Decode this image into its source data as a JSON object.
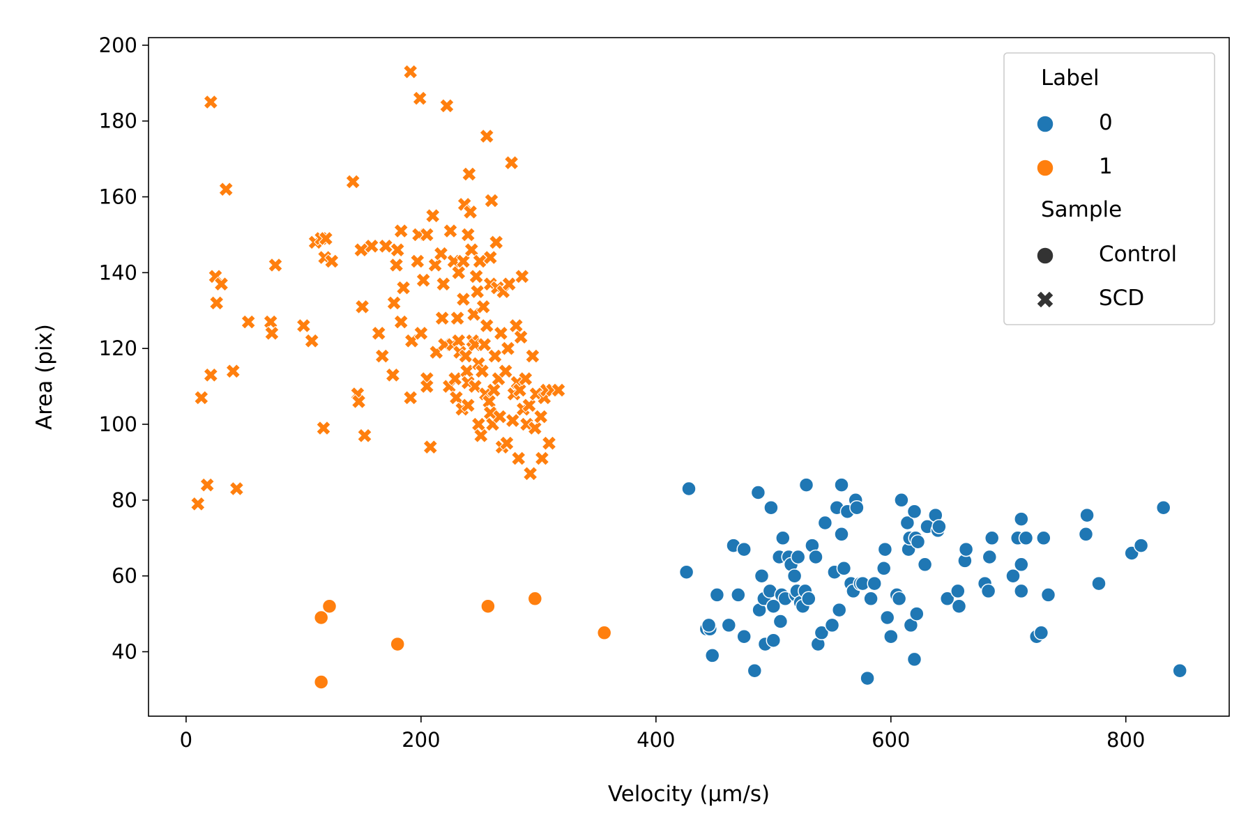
{
  "chart_data": {
    "type": "scatter",
    "xlabel": "Velocity (µm/s)",
    "ylabel": "Area (pix)",
    "xlim": [
      -32,
      888
    ],
    "ylim": [
      23,
      202
    ],
    "xticks": [
      0,
      200,
      400,
      600,
      800
    ],
    "yticks": [
      40,
      60,
      80,
      100,
      120,
      140,
      160,
      180,
      200
    ],
    "grid": false,
    "colors": {
      "label_0": "#1f77b4",
      "label_1": "#ff7f0e",
      "legend_neutral": "#333333"
    },
    "legend": {
      "placement": "top-right",
      "hue_title": "Label",
      "hue_entries": [
        {
          "text": "0",
          "color": "#1f77b4"
        },
        {
          "text": "1",
          "color": "#ff7f0e"
        }
      ],
      "style_title": "Sample",
      "style_entries": [
        {
          "text": "Control",
          "marker": "circle"
        },
        {
          "text": "SCD",
          "marker": "x"
        }
      ]
    },
    "series": [
      {
        "label": "0",
        "sample": "Control",
        "marker": "circle",
        "color": "#1f77b4",
        "points": [
          [
            428,
            83
          ],
          [
            426,
            61
          ],
          [
            443,
            46
          ],
          [
            446,
            46
          ],
          [
            445,
            47
          ],
          [
            448,
            39
          ],
          [
            452,
            55
          ],
          [
            462,
            47
          ],
          [
            466,
            68
          ],
          [
            470,
            55
          ],
          [
            475,
            67
          ],
          [
            475,
            44
          ],
          [
            484,
            35
          ],
          [
            487,
            82
          ],
          [
            488,
            51
          ],
          [
            490,
            60
          ],
          [
            492,
            54
          ],
          [
            493,
            42
          ],
          [
            497,
            56
          ],
          [
            498,
            78
          ],
          [
            500,
            52
          ],
          [
            500,
            43
          ],
          [
            505,
            65
          ],
          [
            506,
            48
          ],
          [
            507,
            55
          ],
          [
            508,
            70
          ],
          [
            510,
            54
          ],
          [
            513,
            65
          ],
          [
            515,
            63
          ],
          [
            518,
            60
          ],
          [
            519,
            55
          ],
          [
            520,
            56
          ],
          [
            521,
            65
          ],
          [
            523,
            53
          ],
          [
            525,
            52
          ],
          [
            527,
            56
          ],
          [
            528,
            84
          ],
          [
            530,
            54
          ],
          [
            533,
            68
          ],
          [
            536,
            65
          ],
          [
            538,
            42
          ],
          [
            541,
            45
          ],
          [
            544,
            74
          ],
          [
            550,
            47
          ],
          [
            552,
            61
          ],
          [
            554,
            78
          ],
          [
            556,
            51
          ],
          [
            558,
            84
          ],
          [
            558,
            71
          ],
          [
            560,
            62
          ],
          [
            563,
            77
          ],
          [
            566,
            58
          ],
          [
            568,
            56
          ],
          [
            570,
            80
          ],
          [
            571,
            78
          ],
          [
            574,
            58
          ],
          [
            576,
            58
          ],
          [
            580,
            33
          ],
          [
            583,
            54
          ],
          [
            586,
            58
          ],
          [
            594,
            62
          ],
          [
            595,
            67
          ],
          [
            597,
            49
          ],
          [
            600,
            44
          ],
          [
            605,
            55
          ],
          [
            607,
            54
          ],
          [
            609,
            80
          ],
          [
            614,
            74
          ],
          [
            615,
            67
          ],
          [
            616,
            70
          ],
          [
            617,
            47
          ],
          [
            620,
            77
          ],
          [
            620,
            38
          ],
          [
            621,
            70
          ],
          [
            622,
            50
          ],
          [
            623,
            69
          ],
          [
            629,
            63
          ],
          [
            631,
            73
          ],
          [
            638,
            76
          ],
          [
            640,
            72
          ],
          [
            641,
            73
          ],
          [
            648,
            54
          ],
          [
            657,
            56
          ],
          [
            658,
            52
          ],
          [
            663,
            64
          ],
          [
            664,
            67
          ],
          [
            680,
            58
          ],
          [
            683,
            56
          ],
          [
            684,
            65
          ],
          [
            686,
            70
          ],
          [
            704,
            60
          ],
          [
            708,
            70
          ],
          [
            711,
            75
          ],
          [
            711,
            63
          ],
          [
            711,
            56
          ],
          [
            715,
            70
          ],
          [
            724,
            44
          ],
          [
            728,
            45
          ],
          [
            730,
            70
          ],
          [
            734,
            55
          ],
          [
            767,
            76
          ],
          [
            766,
            71
          ],
          [
            777,
            58
          ],
          [
            805,
            66
          ],
          [
            813,
            68
          ],
          [
            832,
            78
          ],
          [
            846,
            35
          ]
        ]
      },
      {
        "label": "1",
        "sample": "Control",
        "marker": "circle",
        "color": "#ff7f0e",
        "points": [
          [
            115,
            32
          ],
          [
            115,
            49
          ],
          [
            122,
            52
          ],
          [
            180,
            42
          ],
          [
            257,
            52
          ],
          [
            297,
            54
          ],
          [
            356,
            45
          ]
        ]
      },
      {
        "label": "1",
        "sample": "SCD",
        "marker": "x",
        "color": "#ff7f0e",
        "points": [
          [
            10,
            79
          ],
          [
            13,
            107
          ],
          [
            18,
            84
          ],
          [
            21,
            185
          ],
          [
            21,
            113
          ],
          [
            25,
            139
          ],
          [
            26,
            132
          ],
          [
            30,
            137
          ],
          [
            34,
            162
          ],
          [
            40,
            114
          ],
          [
            43,
            83
          ],
          [
            53,
            127
          ],
          [
            72,
            127
          ],
          [
            73,
            124
          ],
          [
            76,
            142
          ],
          [
            100,
            126
          ],
          [
            107,
            122
          ],
          [
            110,
            148
          ],
          [
            115,
            149
          ],
          [
            117,
            99
          ],
          [
            118,
            144
          ],
          [
            119,
            149
          ],
          [
            124,
            143
          ],
          [
            142,
            164
          ],
          [
            146,
            108
          ],
          [
            147,
            106
          ],
          [
            149,
            146
          ],
          [
            150,
            131
          ],
          [
            152,
            97
          ],
          [
            158,
            147
          ],
          [
            164,
            124
          ],
          [
            167,
            118
          ],
          [
            170,
            147
          ],
          [
            176,
            113
          ],
          [
            177,
            132
          ],
          [
            179,
            142
          ],
          [
            180,
            146
          ],
          [
            183,
            127
          ],
          [
            183,
            151
          ],
          [
            185,
            136
          ],
          [
            191,
            107
          ],
          [
            191,
            193
          ],
          [
            192,
            122
          ],
          [
            197,
            143
          ],
          [
            198,
            150
          ],
          [
            199,
            186
          ],
          [
            200,
            124
          ],
          [
            202,
            138
          ],
          [
            205,
            112
          ],
          [
            205,
            110
          ],
          [
            205,
            150
          ],
          [
            208,
            94
          ],
          [
            210,
            155
          ],
          [
            212,
            142
          ],
          [
            213,
            119
          ],
          [
            217,
            145
          ],
          [
            218,
            128
          ],
          [
            219,
            137
          ],
          [
            220,
            121
          ],
          [
            222,
            184
          ],
          [
            224,
            110
          ],
          [
            225,
            151
          ],
          [
            227,
            121
          ],
          [
            228,
            143
          ],
          [
            229,
            112
          ],
          [
            230,
            107
          ],
          [
            231,
            128
          ],
          [
            232,
            140
          ],
          [
            232,
            122
          ],
          [
            233,
            119
          ],
          [
            235,
            104
          ],
          [
            236,
            143
          ],
          [
            236,
            133
          ],
          [
            237,
            158
          ],
          [
            238,
            118
          ],
          [
            239,
            114
          ],
          [
            240,
            111
          ],
          [
            240,
            105
          ],
          [
            240,
            150
          ],
          [
            241,
            166
          ],
          [
            242,
            156
          ],
          [
            243,
            146
          ],
          [
            244,
            122
          ],
          [
            245,
            129
          ],
          [
            246,
            110
          ],
          [
            246,
            121
          ],
          [
            247,
            139
          ],
          [
            248,
            135
          ],
          [
            249,
            100
          ],
          [
            249,
            116
          ],
          [
            250,
            143
          ],
          [
            251,
            97
          ],
          [
            252,
            114
          ],
          [
            253,
            131
          ],
          [
            254,
            121
          ],
          [
            255,
            108
          ],
          [
            256,
            126
          ],
          [
            256,
            176
          ],
          [
            258,
            106
          ],
          [
            259,
            137
          ],
          [
            259,
            144
          ],
          [
            259,
            103
          ],
          [
            260,
            159
          ],
          [
            261,
            100
          ],
          [
            262,
            109
          ],
          [
            263,
            118
          ],
          [
            264,
            148
          ],
          [
            265,
            136
          ],
          [
            266,
            112
          ],
          [
            267,
            102
          ],
          [
            268,
            124
          ],
          [
            269,
            94
          ],
          [
            270,
            135
          ],
          [
            272,
            114
          ],
          [
            273,
            95
          ],
          [
            274,
            120
          ],
          [
            275,
            137
          ],
          [
            277,
            169
          ],
          [
            278,
            101
          ],
          [
            279,
            108
          ],
          [
            281,
            126
          ],
          [
            282,
            111
          ],
          [
            283,
            91
          ],
          [
            284,
            109
          ],
          [
            285,
            123
          ],
          [
            286,
            139
          ],
          [
            287,
            104
          ],
          [
            289,
            112
          ],
          [
            290,
            100
          ],
          [
            292,
            105
          ],
          [
            293,
            87
          ],
          [
            295,
            118
          ],
          [
            297,
            99
          ],
          [
            298,
            108
          ],
          [
            302,
            102
          ],
          [
            303,
            91
          ],
          [
            305,
            107
          ],
          [
            307,
            109
          ],
          [
            309,
            95
          ],
          [
            312,
            109
          ],
          [
            317,
            109
          ]
        ]
      }
    ]
  }
}
